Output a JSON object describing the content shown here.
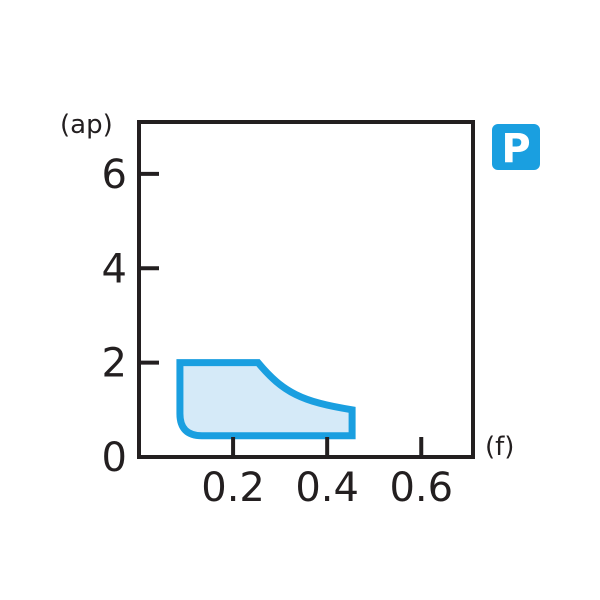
{
  "chart_data": {
    "type": "area",
    "title": "",
    "xlabel": "(f)",
    "ylabel": "(ap)",
    "xlim": [
      0,
      0.71
    ],
    "ylim": [
      0,
      7.1
    ],
    "x_ticks": [
      0.2,
      0.4,
      0.6
    ],
    "x_tick_labels": [
      "0.2",
      "0.4",
      "0.6"
    ],
    "y_ticks": [
      0,
      2,
      4,
      6
    ],
    "y_tick_labels": [
      "0",
      "2",
      "4",
      "6"
    ],
    "grid": false,
    "region": {
      "description_points": [
        [
          0.087,
          2.0
        ],
        [
          0.253,
          2.0
        ],
        [
          0.453,
          1.0
        ],
        [
          0.453,
          0.45
        ],
        [
          0.087,
          0.45
        ]
      ],
      "fill": "#d5eaf8",
      "stroke": "#1a9fe0"
    },
    "badge": {
      "label": "P",
      "color": "#1a9fe0"
    }
  }
}
